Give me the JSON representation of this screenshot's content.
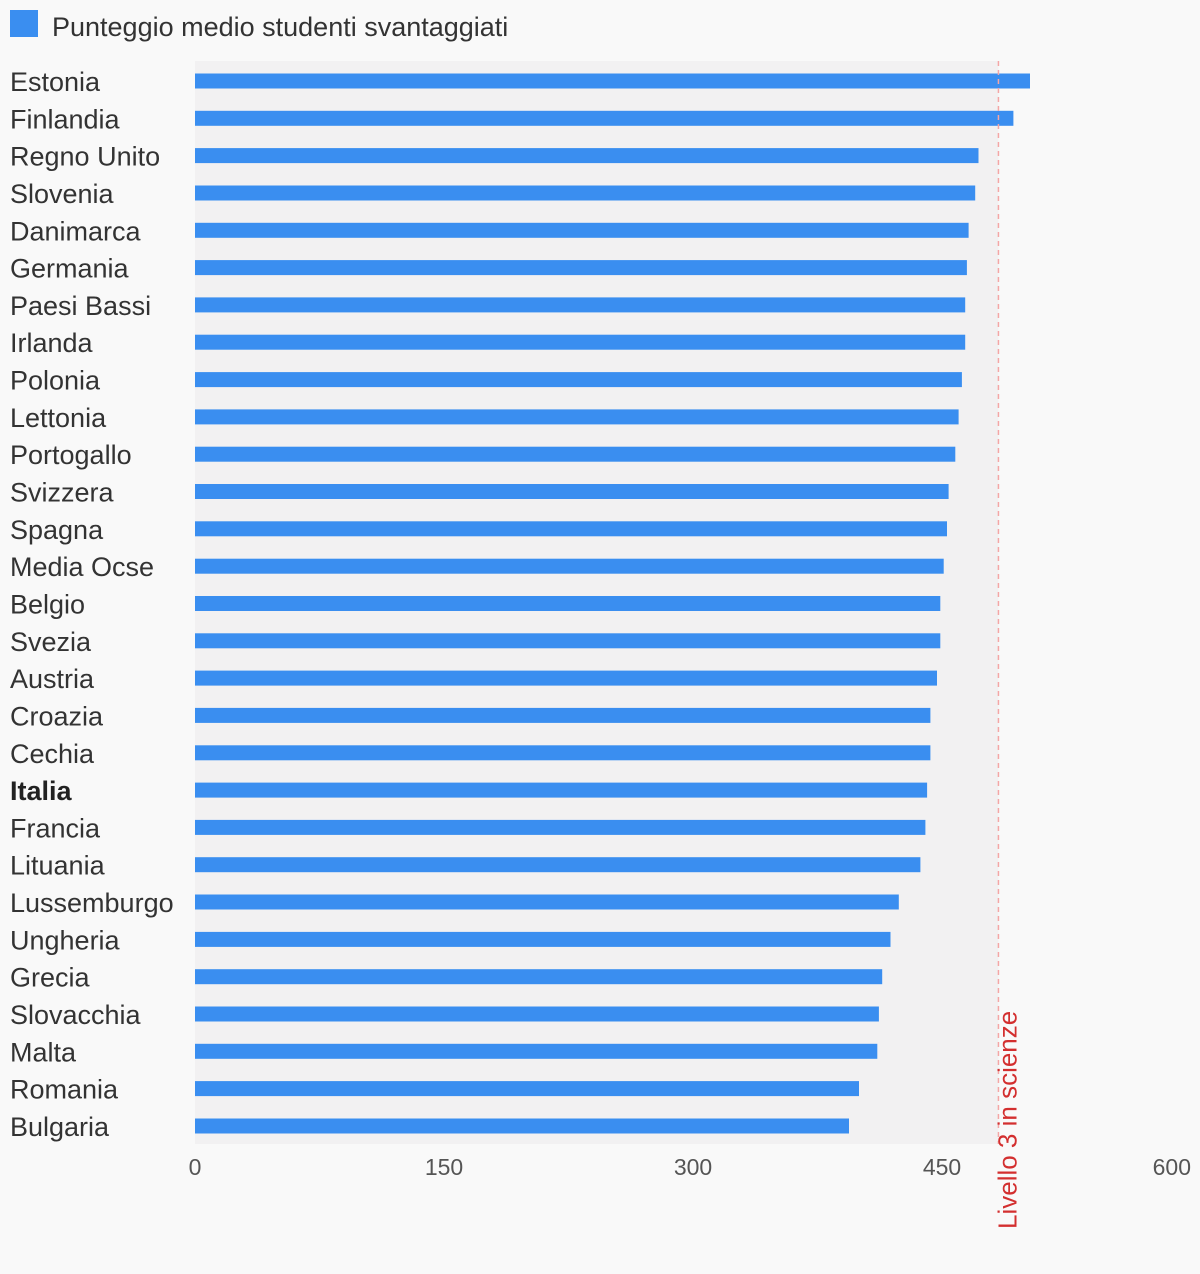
{
  "chart_data": {
    "type": "bar",
    "orientation": "horizontal",
    "legend": {
      "position": "top-left",
      "entries": [
        {
          "name": "Punteggio medio studenti svantaggiati",
          "color": "#3a8ef0"
        }
      ]
    },
    "categories": [
      "Estonia",
      "Finlandia",
      "Regno Unito",
      "Slovenia",
      "Danimarca",
      "Germania",
      "Paesi Bassi",
      "Irlanda",
      "Polonia",
      "Lettonia",
      "Portogallo",
      "Svizzera",
      "Spagna",
      "Media Ocse",
      "Belgio",
      "Svezia",
      "Austria",
      "Croazia",
      "Cechia",
      "Italia",
      "Francia",
      "Lituania",
      "Lussemburgo",
      "Ungheria",
      "Grecia",
      "Slovacchia",
      "Malta",
      "Romania",
      "Bulgaria"
    ],
    "highlighted_category": "Italia",
    "series": [
      {
        "name": "Punteggio medio studenti svantaggiati",
        "color": "#3a8ef0",
        "values": [
          503,
          493,
          472,
          470,
          466,
          465,
          464,
          464,
          462,
          460,
          458,
          454,
          453,
          451,
          449,
          449,
          447,
          443,
          443,
          441,
          440,
          437,
          424,
          419,
          414,
          412,
          411,
          400,
          394
        ]
      }
    ],
    "reference_line": {
      "value": 484,
      "label": "Livello 3 in scienze",
      "color": "#d32f2f"
    },
    "xlim": [
      0,
      600
    ],
    "xticks": [
      0,
      150,
      300,
      450,
      600
    ],
    "plot_background_until": 484,
    "plot_background_color": "#f2f1f2",
    "grid": false
  }
}
